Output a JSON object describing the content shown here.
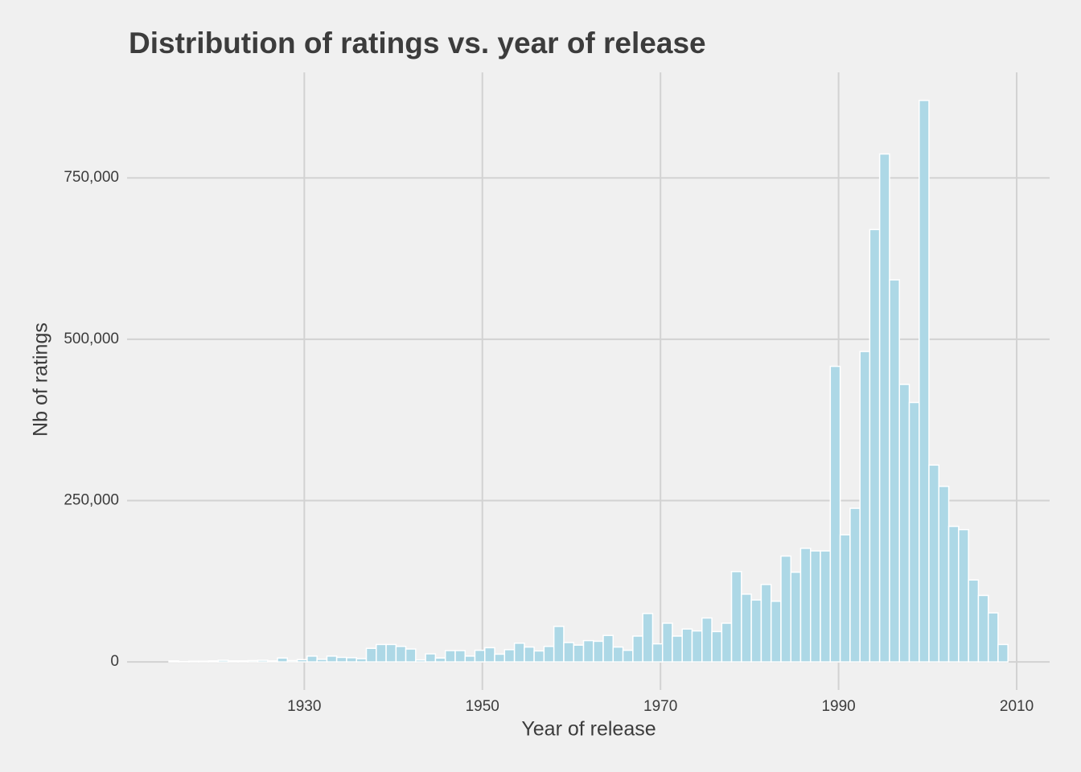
{
  "chart_data": {
    "type": "histogram",
    "title": "Distribution of ratings vs. year of release",
    "x_label": "Year of release",
    "y_label": "Nb of ratings",
    "bins": [
      1914.8,
      1915.91,
      1917.02,
      1918.13,
      1919.23,
      1920.34,
      1921.45,
      1922.56,
      1923.67,
      1924.78,
      1925.89,
      1926.99,
      1928.1,
      1929.21,
      1930.32,
      1931.43,
      1932.54,
      1933.64,
      1934.75,
      1935.86,
      1936.97,
      1938.08,
      1939.19,
      1940.3,
      1941.4,
      1942.51,
      1943.62,
      1944.73,
      1945.84,
      1946.95,
      1948.06,
      1949.16,
      1950.27,
      1951.38,
      1952.49,
      1953.6,
      1954.71,
      1955.81,
      1956.92,
      1958.03,
      1959.14,
      1960.25,
      1961.36,
      1962.47,
      1963.57,
      1964.68,
      1965.79,
      1966.9,
      1968.01,
      1969.12,
      1970.23,
      1971.33,
      1972.44,
      1973.55,
      1974.66,
      1975.77,
      1976.88,
      1977.98,
      1979.09,
      1980.2,
      1981.31,
      1982.42,
      1983.53,
      1984.64,
      1985.74,
      1986.85,
      1987.96,
      1989.07,
      1990.18,
      1991.29,
      1992.4,
      1993.5,
      1994.61,
      1995.72,
      1996.83,
      1997.94,
      1999.05,
      2000.15,
      2001.26,
      2002.37,
      2003.48,
      2004.59,
      2005.7,
      2006.81,
      2007.91,
      2009.02
    ],
    "counts": [
      1500,
      500,
      1000,
      1000,
      1500,
      2500,
      1500,
      1500,
      2000,
      2500,
      1500,
      6000,
      2000,
      3500,
      9000,
      4000,
      9000,
      7000,
      6500,
      5000,
      21000,
      27000,
      27000,
      24000,
      20000,
      3000,
      12500,
      6000,
      17500,
      17500,
      9000,
      18000,
      22000,
      12000,
      19000,
      29000,
      23000,
      17000,
      24000,
      55000,
      30000,
      26000,
      33000,
      32000,
      41000,
      23000,
      18000,
      40000,
      75000,
      28000,
      60000,
      40000,
      51000,
      48000,
      68000,
      47000,
      60000,
      140000,
      105000,
      96000,
      120000,
      94000,
      164000,
      139000,
      176000,
      172000,
      172000,
      458000,
      197000,
      238000,
      481000,
      670000,
      787000,
      592000,
      430000,
      402000,
      870000,
      305000,
      272000,
      210000,
      205000,
      127000,
      103000,
      76000,
      27000
    ],
    "color": "#add8e6",
    "edge_color": "#ffffff",
    "xlim": [
      1910.1,
      2013.7
    ],
    "xticks": [
      1930,
      1950,
      1970,
      1990,
      2010
    ],
    "ylim": [
      -43500,
      913500
    ],
    "yticks": [
      0,
      {
        "value": 250000,
        "label": "250,000"
      },
      {
        "value": 500000,
        "label": "500,000"
      },
      {
        "value": 750000,
        "label": "750,000"
      }
    ],
    "grid": true
  }
}
